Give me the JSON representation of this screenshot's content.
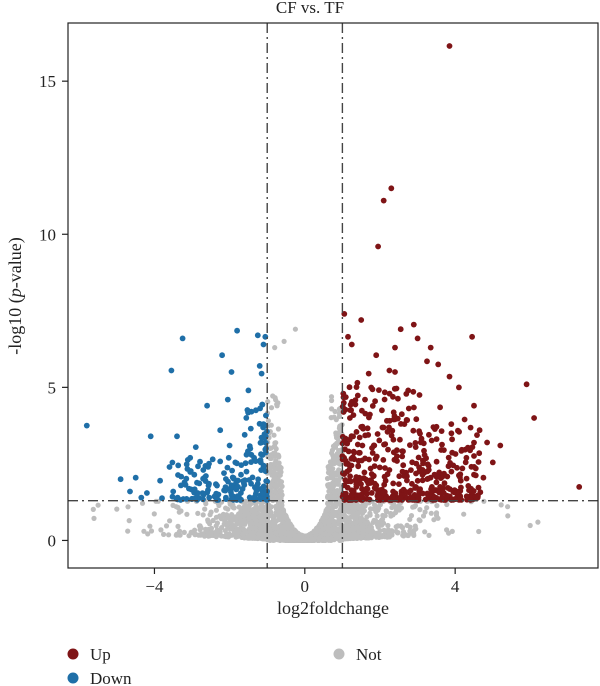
{
  "chart_data": {
    "type": "scatter",
    "title": "CF vs. TF",
    "xlabel": "log2foldchange",
    "ylabel_prefix": "-log10 (",
    "ylabel_italic": "p",
    "ylabel_suffix": "-value)",
    "xlim": [
      -6.3,
      7.8
    ],
    "ylim": [
      -0.9,
      16.9
    ],
    "x_ticks": [
      -4,
      0,
      4
    ],
    "y_ticks": [
      0,
      5,
      10,
      15
    ],
    "x_tick_labels": [
      "−4",
      "0",
      "4"
    ],
    "y_tick_labels": [
      "0",
      "5",
      "10",
      "15"
    ],
    "vlines": [
      -1,
      1
    ],
    "hline": 1.3,
    "grid": false,
    "legend_position": "bottom",
    "colors": {
      "Up": "#7f1416",
      "Down": "#1f6fa8",
      "Not": "#bdbdbd",
      "threshold_line": "#444444"
    },
    "series": [
      {
        "name": "Up",
        "points": [
          [
            3.85,
            16.15
          ],
          [
            2.3,
            11.5
          ],
          [
            2.1,
            11.1
          ],
          [
            1.95,
            9.6
          ],
          [
            1.05,
            7.4
          ],
          [
            1.5,
            7.2
          ],
          [
            2.4,
            6.3
          ],
          [
            2.55,
            6.9
          ],
          [
            2.9,
            7.05
          ],
          [
            3.0,
            6.6
          ],
          [
            3.35,
            6.3
          ],
          [
            4.45,
            6.65
          ],
          [
            1.9,
            6.05
          ],
          [
            3.25,
            5.85
          ],
          [
            3.55,
            5.75
          ],
          [
            2.25,
            5.55
          ],
          [
            2.4,
            5.5
          ],
          [
            3.85,
            5.35
          ],
          [
            5.9,
            5.1
          ],
          [
            6.1,
            4.0
          ],
          [
            4.1,
            5.0
          ],
          [
            4.5,
            4.4
          ],
          [
            5.2,
            3.1
          ],
          [
            7.3,
            1.75
          ],
          [
            1.15,
            6.65
          ],
          [
            1.25,
            6.4
          ],
          [
            1.7,
            5.45
          ],
          [
            2.75,
            4.9
          ],
          [
            1.4,
            5.15
          ],
          [
            1.6,
            4.6
          ],
          [
            3.05,
            4.75
          ],
          [
            3.6,
            4.35
          ],
          [
            4.25,
            3.95
          ],
          [
            4.65,
            3.6
          ],
          [
            2.05,
            4.25
          ],
          [
            1.2,
            4.0
          ],
          [
            2.65,
            3.8
          ],
          [
            3.9,
            3.5
          ],
          [
            4.85,
            3.2
          ],
          [
            5.0,
            2.55
          ],
          [
            1.55,
            3.65
          ],
          [
            2.2,
            3.55
          ],
          [
            3.3,
            3.45
          ],
          [
            1.05,
            3.3
          ],
          [
            1.85,
            3.1
          ],
          [
            2.95,
            3.05
          ],
          [
            3.7,
            2.95
          ],
          [
            4.3,
            2.7
          ],
          [
            4.55,
            2.35
          ],
          [
            1.3,
            2.9
          ],
          [
            2.45,
            2.75
          ],
          [
            3.15,
            2.6
          ],
          [
            3.95,
            2.45
          ],
          [
            4.75,
            2.05
          ],
          [
            1.1,
            2.5
          ],
          [
            1.75,
            2.35
          ],
          [
            2.6,
            2.25
          ],
          [
            3.45,
            2.15
          ],
          [
            4.15,
            1.95
          ],
          [
            1.45,
            2.05
          ],
          [
            2.15,
            1.95
          ],
          [
            2.85,
            1.85
          ],
          [
            3.6,
            1.75
          ],
          [
            4.4,
            1.65
          ],
          [
            1.05,
            1.8
          ],
          [
            1.65,
            1.7
          ],
          [
            2.35,
            1.6
          ],
          [
            3.1,
            1.55
          ],
          [
            3.8,
            1.45
          ],
          [
            1.25,
            1.5
          ],
          [
            1.95,
            1.45
          ],
          [
            2.7,
            1.4
          ],
          [
            3.35,
            1.38
          ],
          [
            4.05,
            1.36
          ],
          [
            1.15,
            1.38
          ],
          [
            1.5,
            1.42
          ],
          [
            2.5,
            1.33
          ],
          [
            3.9,
            1.32
          ],
          [
            4.6,
            1.4
          ]
        ]
      },
      {
        "name": "Down",
        "points": [
          [
            -1.05,
            6.65
          ],
          [
            -1.1,
            6.4
          ],
          [
            -1.25,
            6.7
          ],
          [
            -1.8,
            6.85
          ],
          [
            -3.25,
            6.6
          ],
          [
            -2.2,
            6.05
          ],
          [
            -1.2,
            5.7
          ],
          [
            -1.95,
            5.5
          ],
          [
            -3.55,
            5.55
          ],
          [
            -1.15,
            5.45
          ],
          [
            -1.5,
            4.9
          ],
          [
            -2.05,
            4.6
          ],
          [
            -2.6,
            4.4
          ],
          [
            -1.3,
            4.25
          ],
          [
            -5.8,
            3.75
          ],
          [
            -4.1,
            3.4
          ],
          [
            -3.4,
            3.4
          ],
          [
            -2.25,
            3.6
          ],
          [
            -1.6,
            3.45
          ],
          [
            -1.1,
            3.8
          ],
          [
            -2.9,
            3.05
          ],
          [
            -2.0,
            3.1
          ],
          [
            -1.45,
            3.0
          ],
          [
            -1.15,
            3.2
          ],
          [
            -3.05,
            2.7
          ],
          [
            -2.45,
            2.65
          ],
          [
            -1.85,
            2.55
          ],
          [
            -1.35,
            2.7
          ],
          [
            -3.6,
            2.4
          ],
          [
            -2.7,
            2.3
          ],
          [
            -2.15,
            2.2
          ],
          [
            -1.55,
            2.25
          ],
          [
            -1.1,
            2.4
          ],
          [
            -4.9,
            2.0
          ],
          [
            -4.5,
            2.05
          ],
          [
            -3.85,
            1.95
          ],
          [
            -3.2,
            1.9
          ],
          [
            -2.55,
            1.85
          ],
          [
            -1.95,
            1.8
          ],
          [
            -1.25,
            1.85
          ],
          [
            -4.65,
            1.6
          ],
          [
            -4.2,
            1.55
          ],
          [
            -3.5,
            1.6
          ],
          [
            -2.85,
            1.55
          ],
          [
            -2.3,
            1.5
          ],
          [
            -1.7,
            1.55
          ],
          [
            -1.15,
            1.5
          ],
          [
            -4.35,
            1.4
          ],
          [
            -3.8,
            1.38
          ],
          [
            -3.0,
            1.36
          ],
          [
            -2.1,
            1.4
          ],
          [
            -1.45,
            1.38
          ]
        ]
      }
    ],
    "not_significant": {
      "name": "Not",
      "region_note": "dense gray V-shaped cloud: |log2fc| < 1 or -log10(p) < 1.3",
      "approx_count": 2500,
      "highlights": [
        [
          -0.25,
          6.9
        ],
        [
          -0.55,
          6.5
        ],
        [
          -0.8,
          6.3
        ],
        [
          -5.5,
          1.15
        ],
        [
          5.4,
          0.8
        ],
        [
          6.2,
          0.6
        ]
      ]
    }
  },
  "legend": {
    "items": [
      {
        "label": "Up",
        "color": "#7f1416"
      },
      {
        "label": "Down",
        "color": "#1f6fa8"
      },
      {
        "label": "Not",
        "color": "#bdbdbd"
      }
    ]
  }
}
